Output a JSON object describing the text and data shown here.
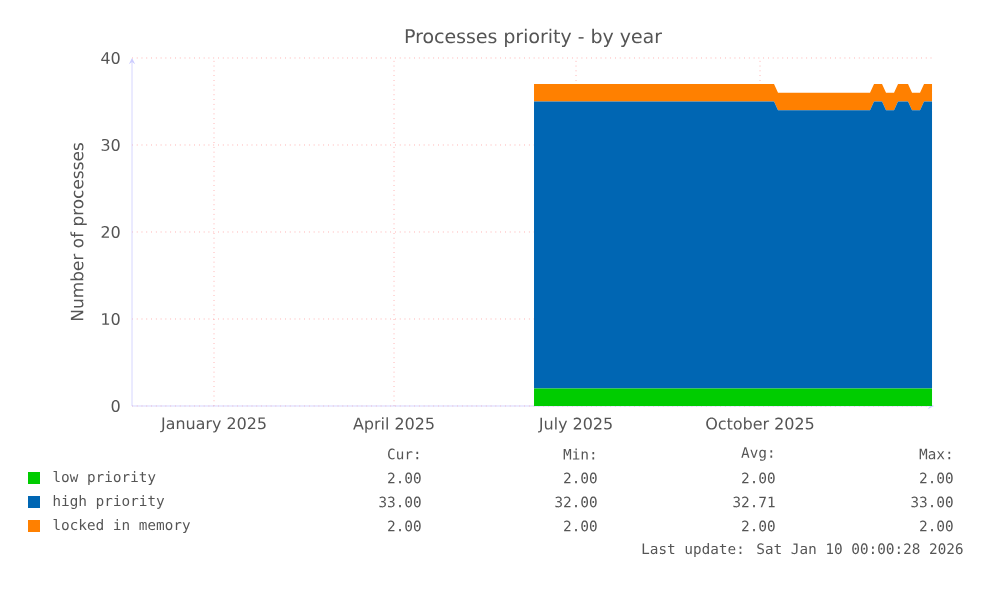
{
  "chart_data": {
    "type": "area",
    "title": "Processes priority - by year",
    "ylabel": "Number of processes",
    "stacked": true,
    "x": [
      "2025-06-10",
      "2025-10-08",
      "2025-10-10",
      "2025-11-25",
      "2025-11-27",
      "2025-12-01",
      "2025-12-03",
      "2025-12-07",
      "2025-12-09",
      "2025-12-14",
      "2025-12-16",
      "2025-12-20",
      "2025-12-22",
      "2025-12-26"
    ],
    "series": [
      {
        "name": "low priority",
        "color": "#00cc00",
        "values": [
          2,
          2,
          2,
          2,
          2,
          2,
          2,
          2,
          2,
          2,
          2,
          2,
          2,
          2
        ]
      },
      {
        "name": "high priority",
        "color": "#0066b3",
        "values": [
          33,
          33,
          32,
          32,
          33,
          33,
          32,
          32,
          33,
          33,
          32,
          32,
          33,
          33
        ]
      },
      {
        "name": "locked in memory",
        "color": "#ff8000",
        "values": [
          2,
          2,
          2,
          2,
          2,
          2,
          2,
          2,
          2,
          2,
          2,
          2,
          2,
          2
        ]
      }
    ],
    "xlim": [
      "2024-11-21",
      "2025-12-27"
    ],
    "xticks": [
      {
        "value": "2025-01-01",
        "label": "January 2025"
      },
      {
        "value": "2025-04-01",
        "label": "April 2025"
      },
      {
        "value": "2025-07-01",
        "label": "July 2025"
      },
      {
        "value": "2025-10-01",
        "label": "October 2025"
      }
    ],
    "ylim": [
      0,
      40
    ],
    "yticks": [
      0,
      10,
      20,
      30,
      40
    ],
    "grid": true,
    "legend": "bottom",
    "annotations": [
      "Cur:",
      "Min:",
      "Avg:",
      "Max:",
      "2.00",
      "2.00",
      "2.00",
      "2.00",
      "33.00",
      "32.00",
      "32.71",
      "33.00",
      "2.00",
      "2.00",
      "2.00",
      "2.00",
      "Last update: Sat Jan 10 00:00:28 2026"
    ]
  }
}
